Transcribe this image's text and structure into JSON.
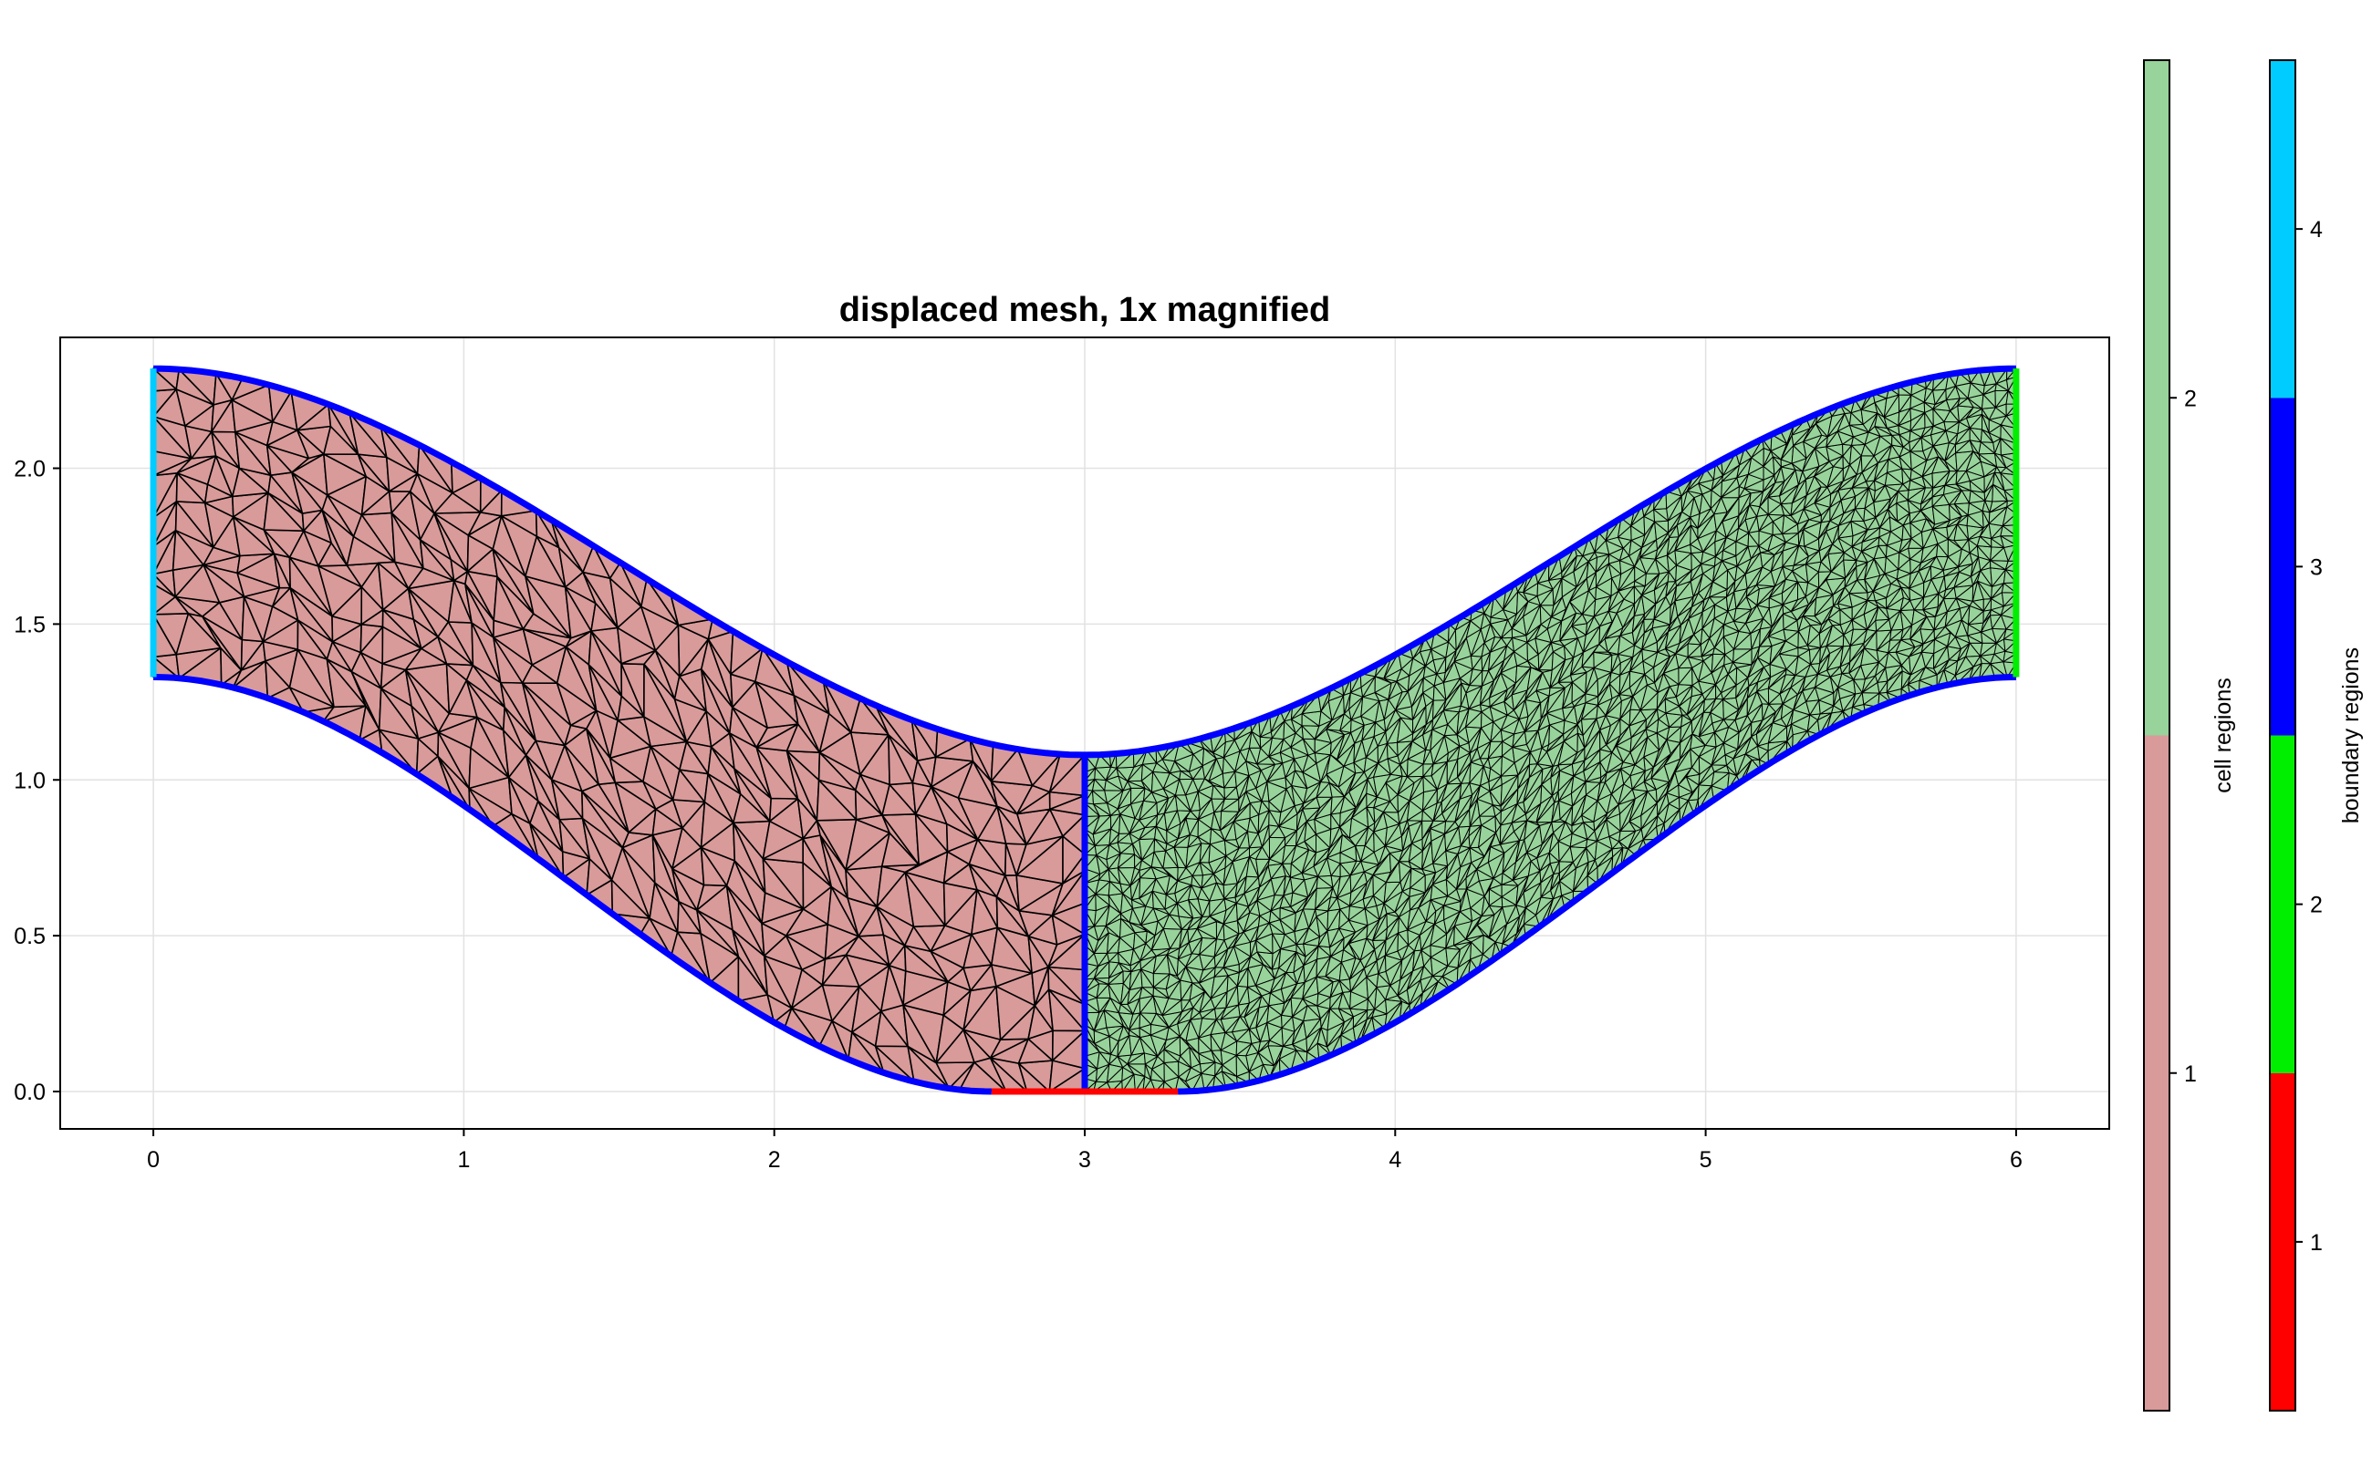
{
  "chart_data": {
    "type": "mesh",
    "title": "displaced mesh, 1x magnified",
    "xlim": [
      -0.3,
      6.3
    ],
    "ylim": [
      -0.12,
      2.42
    ],
    "xticks": [
      0,
      1,
      2,
      3,
      4,
      5,
      6
    ],
    "yticks": [
      0.0,
      0.5,
      1.0,
      1.5,
      2.0
    ],
    "xtick_labels": [
      "0",
      "1",
      "2",
      "3",
      "4",
      "5",
      "6"
    ],
    "ytick_labels": [
      "0.0",
      "0.5",
      "1.0",
      "1.5",
      "2.0"
    ],
    "grid": true,
    "domain_shape": {
      "bottom_flat": [
        2.7,
        3.3
      ],
      "top_min_y": 1.08,
      "top_max_y": 2.32,
      "bottom_left_y": 1.33,
      "interface_x": 3.0
    },
    "cell_regions": [
      {
        "id": 1,
        "color": "#d99a9a",
        "x_range": [
          0,
          3
        ],
        "mesh": "coarse"
      },
      {
        "id": 2,
        "color": "#97d39a",
        "x_range": [
          3,
          6
        ],
        "mesh": "fine"
      }
    ],
    "boundary_regions": [
      {
        "id": 1,
        "color": "#ff0000",
        "segment": "bottom flat"
      },
      {
        "id": 2,
        "color": "#00ee00",
        "segment": "right edge"
      },
      {
        "id": 3,
        "color": "#0000ff",
        "segment": "curved walls and interface"
      },
      {
        "id": 4,
        "color": "#00ccff",
        "segment": "left edge"
      }
    ],
    "colorbars": [
      {
        "label": "cell regions",
        "ticks": [
          "1",
          "2"
        ]
      },
      {
        "label": "boundary regions",
        "ticks": [
          "1",
          "2",
          "3",
          "4"
        ]
      }
    ]
  }
}
